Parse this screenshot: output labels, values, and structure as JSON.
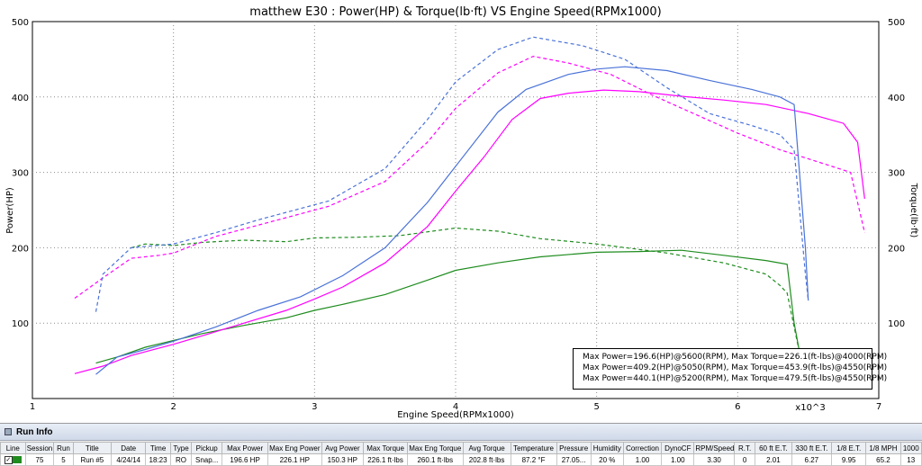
{
  "chart_data": {
    "type": "line",
    "title": "matthew E30 : Power(HP) & Torque(lb·ft) VS Engine Speed(RPMx1000)",
    "xlabel": "Engine Speed(RPMx1000)",
    "x_multiplier_label": "x10^3",
    "ylabel_left": "Power(HP)",
    "ylabel_right": "Torque(lb·ft)",
    "xlim": [
      1,
      7
    ],
    "ylim_left": [
      0,
      500
    ],
    "ylim_right": [
      0,
      500
    ],
    "x_ticks": [
      "1",
      "2",
      "3",
      "4",
      "5",
      "6",
      "7"
    ],
    "y_ticks": [
      "100",
      "200",
      "300",
      "400",
      "500"
    ],
    "grid": true,
    "series": [
      {
        "color": "#1e8c1e",
        "legend": "Max Power=196.6(HP)@5600(RPM), Max Torque=226.1(ft-lbs)@4000(RPM)",
        "power": [
          [
            1.45,
            47
          ],
          [
            1.6,
            55
          ],
          [
            1.8,
            68
          ],
          [
            2.0,
            77
          ],
          [
            2.2,
            86
          ],
          [
            2.5,
            97
          ],
          [
            2.8,
            107
          ],
          [
            3.0,
            117
          ],
          [
            3.2,
            125
          ],
          [
            3.5,
            138
          ],
          [
            3.8,
            157
          ],
          [
            4.0,
            170
          ],
          [
            4.3,
            180
          ],
          [
            4.6,
            188
          ],
          [
            5.0,
            194
          ],
          [
            5.3,
            195
          ],
          [
            5.6,
            196.6
          ],
          [
            5.9,
            190
          ],
          [
            6.2,
            183
          ],
          [
            6.35,
            178
          ],
          [
            6.4,
            100
          ],
          [
            6.45,
            50
          ]
        ],
        "torque": [
          [
            1.7,
            200
          ],
          [
            1.8,
            205
          ],
          [
            2.0,
            203
          ],
          [
            2.2,
            207
          ],
          [
            2.5,
            210
          ],
          [
            2.8,
            208
          ],
          [
            3.0,
            213
          ],
          [
            3.3,
            214
          ],
          [
            3.6,
            216
          ],
          [
            4.0,
            226.1
          ],
          [
            4.3,
            222
          ],
          [
            4.6,
            212
          ],
          [
            5.0,
            205
          ],
          [
            5.5,
            193
          ],
          [
            5.9,
            180
          ],
          [
            6.2,
            165
          ],
          [
            6.3,
            150
          ],
          [
            6.35,
            140
          ],
          [
            6.45,
            50
          ]
        ]
      },
      {
        "color": "#ff00ff",
        "legend": "Max Power=409.2(HP)@5050(RPM), Max Torque=453.9(ft-lbs)@4550(RPM)",
        "power": [
          [
            1.3,
            33
          ],
          [
            1.5,
            43
          ],
          [
            1.7,
            57
          ],
          [
            2.0,
            72
          ],
          [
            2.2,
            83
          ],
          [
            2.5,
            100
          ],
          [
            2.8,
            117
          ],
          [
            3.0,
            132
          ],
          [
            3.2,
            148
          ],
          [
            3.5,
            180
          ],
          [
            3.8,
            228
          ],
          [
            4.0,
            275
          ],
          [
            4.2,
            320
          ],
          [
            4.4,
            370
          ],
          [
            4.6,
            398
          ],
          [
            4.8,
            405
          ],
          [
            5.05,
            409.2
          ],
          [
            5.3,
            407
          ],
          [
            5.6,
            401
          ],
          [
            5.9,
            396
          ],
          [
            6.2,
            390
          ],
          [
            6.5,
            378
          ],
          [
            6.75,
            365
          ],
          [
            6.85,
            340
          ],
          [
            6.9,
            265
          ]
        ],
        "torque": [
          [
            1.3,
            133
          ],
          [
            1.5,
            160
          ],
          [
            1.7,
            186
          ],
          [
            1.9,
            190
          ],
          [
            2.0,
            193
          ],
          [
            2.3,
            215
          ],
          [
            2.6,
            230
          ],
          [
            2.9,
            245
          ],
          [
            3.1,
            255
          ],
          [
            3.5,
            288
          ],
          [
            3.8,
            340
          ],
          [
            4.0,
            385
          ],
          [
            4.3,
            432
          ],
          [
            4.55,
            453.9
          ],
          [
            4.8,
            445
          ],
          [
            5.1,
            430
          ],
          [
            5.4,
            402
          ],
          [
            5.7,
            377
          ],
          [
            6.0,
            352
          ],
          [
            6.3,
            330
          ],
          [
            6.6,
            312
          ],
          [
            6.8,
            300
          ],
          [
            6.9,
            220
          ]
        ]
      },
      {
        "color": "#4a72d8",
        "legend": "Max Power=440.1(HP)@5200(RPM), Max Torque=479.5(ft-lbs)@4550(RPM)",
        "power": [
          [
            1.45,
            32
          ],
          [
            1.6,
            55
          ],
          [
            1.8,
            65
          ],
          [
            2.0,
            76
          ],
          [
            2.3,
            95
          ],
          [
            2.6,
            117
          ],
          [
            2.9,
            135
          ],
          [
            3.2,
            163
          ],
          [
            3.5,
            200
          ],
          [
            3.8,
            260
          ],
          [
            4.0,
            308
          ],
          [
            4.3,
            380
          ],
          [
            4.5,
            410
          ],
          [
            4.8,
            430
          ],
          [
            5.0,
            437
          ],
          [
            5.2,
            440.1
          ],
          [
            5.5,
            435
          ],
          [
            5.8,
            422
          ],
          [
            6.1,
            410
          ],
          [
            6.3,
            400
          ],
          [
            6.4,
            390
          ],
          [
            6.48,
            200
          ],
          [
            6.5,
            130
          ]
        ],
        "torque": [
          [
            1.45,
            115
          ],
          [
            1.5,
            165
          ],
          [
            1.7,
            200
          ],
          [
            2.0,
            205
          ],
          [
            2.3,
            220
          ],
          [
            2.6,
            237
          ],
          [
            2.9,
            252
          ],
          [
            3.1,
            262
          ],
          [
            3.5,
            305
          ],
          [
            3.8,
            370
          ],
          [
            4.0,
            420
          ],
          [
            4.3,
            463
          ],
          [
            4.55,
            479.5
          ],
          [
            4.9,
            468
          ],
          [
            5.2,
            450
          ],
          [
            5.5,
            412
          ],
          [
            5.8,
            378
          ],
          [
            6.1,
            362
          ],
          [
            6.3,
            350
          ],
          [
            6.4,
            330
          ],
          [
            6.48,
            165
          ],
          [
            6.5,
            130
          ]
        ]
      }
    ]
  },
  "run_info": {
    "title": "Run Info",
    "columns": [
      "Line",
      "Session",
      "Run",
      "Title",
      "Date",
      "Time",
      "Type",
      "Pickup",
      "Max Power",
      "Max Eng Power",
      "Avg Power",
      "Max Torque",
      "Max Eng Torque",
      "Avg Torque",
      "Temperature",
      "Pressure",
      "Humidity",
      "Correction",
      "DynoCF",
      "RPM/Speed",
      "R.T.",
      "60 ft E.T.",
      "330 ft E.T.",
      "1/8 E.T.",
      "1/8 MPH",
      "1000"
    ],
    "row": [
      "",
      "75",
      "5",
      "Run #5",
      "4/24/14",
      "18:23",
      "RO",
      "Snap...",
      "196.6 HP",
      "226.1 HP",
      "150.3 HP",
      "226.1 ft·lbs",
      "260.1 ft·lbs",
      "202.8 ft·lbs",
      "87.2 °F",
      "27.05...",
      "20 %",
      "1.00",
      "1.00",
      "3.30",
      "0",
      "2.01",
      "6.27",
      "9.95",
      "65.2",
      "13"
    ],
    "checkmark": "✓"
  }
}
